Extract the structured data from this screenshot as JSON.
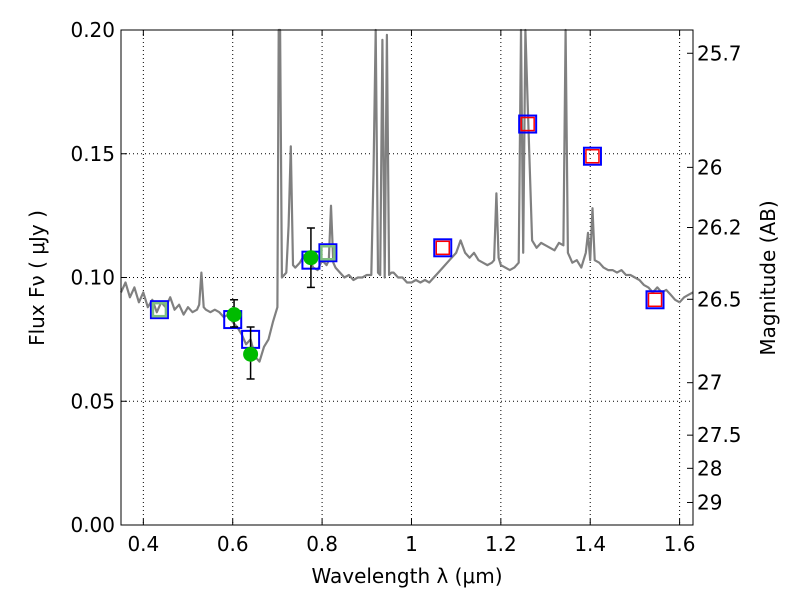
{
  "chart_data": {
    "type": "line",
    "xlabel": "Wavelength  λ (μm)",
    "ylabel": "Flux  Fν  ( μJy )",
    "ylabel_right": "Magnitude (AB)",
    "xlim": [
      0.35,
      1.63
    ],
    "ylim": [
      0.0,
      0.2
    ],
    "grid": true,
    "x_ticks": [
      0.4,
      0.6,
      0.8,
      1.0,
      1.2,
      1.4,
      1.6
    ],
    "x_tick_labels": [
      "0.4",
      "0.6",
      "0.8",
      "1",
      "1.2",
      "1.4",
      "1.6"
    ],
    "y_ticks": [
      0.0,
      0.05,
      0.1,
      0.15,
      0.2
    ],
    "y_tick_labels": [
      "0.00",
      "0.05",
      "0.10",
      "0.15",
      "0.20"
    ],
    "right_ticks": [
      {
        "label": "25.7",
        "flux": 0.1906
      },
      {
        "label": "26",
        "flux": 0.1445
      },
      {
        "label": "26.2",
        "flux": 0.1202
      },
      {
        "label": "26.5",
        "flux": 0.0912
      },
      {
        "label": "27",
        "flux": 0.0575
      },
      {
        "label": "27.5",
        "flux": 0.0363
      },
      {
        "label": "28",
        "flux": 0.0229
      },
      {
        "label": "29",
        "flux": 0.0091
      }
    ],
    "series": [
      {
        "kind": "spectrum",
        "color": "#808080",
        "x": [
          0.35,
          0.36,
          0.37,
          0.38,
          0.39,
          0.4,
          0.41,
          0.42,
          0.43,
          0.44,
          0.45,
          0.46,
          0.47,
          0.48,
          0.49,
          0.5,
          0.51,
          0.52,
          0.525,
          0.53,
          0.535,
          0.54,
          0.55,
          0.56,
          0.57,
          0.58,
          0.59,
          0.6,
          0.61,
          0.62,
          0.63,
          0.64,
          0.65,
          0.66,
          0.67,
          0.68,
          0.69,
          0.7,
          0.703,
          0.706,
          0.71,
          0.72,
          0.725,
          0.73,
          0.735,
          0.74,
          0.75,
          0.76,
          0.77,
          0.78,
          0.79,
          0.8,
          0.81,
          0.815,
          0.82,
          0.825,
          0.83,
          0.84,
          0.85,
          0.86,
          0.87,
          0.88,
          0.89,
          0.9,
          0.91,
          0.915,
          0.92,
          0.925,
          0.93,
          0.935,
          0.94,
          0.945,
          0.95,
          0.955,
          0.96,
          0.97,
          0.98,
          0.99,
          1.0,
          1.01,
          1.02,
          1.03,
          1.04,
          1.05,
          1.06,
          1.07,
          1.08,
          1.09,
          1.1,
          1.11,
          1.12,
          1.13,
          1.14,
          1.15,
          1.16,
          1.17,
          1.18,
          1.185,
          1.19,
          1.195,
          1.2,
          1.21,
          1.22,
          1.23,
          1.24,
          1.245,
          1.25,
          1.255,
          1.26,
          1.27,
          1.28,
          1.29,
          1.3,
          1.31,
          1.32,
          1.33,
          1.34,
          1.345,
          1.35,
          1.355,
          1.36,
          1.37,
          1.38,
          1.39,
          1.395,
          1.4,
          1.405,
          1.41,
          1.42,
          1.43,
          1.44,
          1.45,
          1.46,
          1.47,
          1.48,
          1.49,
          1.5,
          1.51,
          1.52,
          1.53,
          1.54,
          1.55,
          1.56,
          1.57,
          1.58,
          1.59,
          1.6,
          1.61,
          1.62,
          1.63
        ],
        "y": [
          0.094,
          0.098,
          0.092,
          0.096,
          0.09,
          0.094,
          0.088,
          0.091,
          0.086,
          0.09,
          0.088,
          0.092,
          0.087,
          0.089,
          0.085,
          0.088,
          0.086,
          0.087,
          0.089,
          0.102,
          0.088,
          0.087,
          0.086,
          0.087,
          0.086,
          0.084,
          0.085,
          0.082,
          0.08,
          0.077,
          0.073,
          0.075,
          0.068,
          0.066,
          0.072,
          0.075,
          0.082,
          0.088,
          0.2,
          0.2,
          0.1,
          0.102,
          0.121,
          0.153,
          0.105,
          0.104,
          0.106,
          0.109,
          0.108,
          0.104,
          0.103,
          0.107,
          0.105,
          0.107,
          0.129,
          0.106,
          0.104,
          0.102,
          0.1,
          0.101,
          0.099,
          0.1,
          0.1,
          0.101,
          0.101,
          0.142,
          0.2,
          0.102,
          0.101,
          0.196,
          0.1,
          0.198,
          0.101,
          0.102,
          0.102,
          0.1,
          0.1,
          0.098,
          0.098,
          0.099,
          0.098,
          0.099,
          0.098,
          0.1,
          0.102,
          0.104,
          0.106,
          0.108,
          0.11,
          0.115,
          0.11,
          0.108,
          0.11,
          0.107,
          0.106,
          0.105,
          0.106,
          0.107,
          0.134,
          0.108,
          0.105,
          0.104,
          0.103,
          0.104,
          0.106,
          0.2,
          0.11,
          0.2,
          0.17,
          0.115,
          0.112,
          0.114,
          0.113,
          0.112,
          0.111,
          0.114,
          0.113,
          0.2,
          0.11,
          0.108,
          0.106,
          0.107,
          0.104,
          0.11,
          0.118,
          0.107,
          0.128,
          0.107,
          0.106,
          0.104,
          0.103,
          0.103,
          0.102,
          0.103,
          0.101,
          0.101,
          0.1,
          0.099,
          0.097,
          0.096,
          0.094,
          0.096,
          0.094,
          0.095,
          0.093,
          0.091,
          0.09,
          0.092,
          0.093,
          0.094
        ]
      },
      {
        "kind": "model_photometry_blue",
        "marker": "square",
        "color": "#0000ff",
        "x": [
          0.436,
          0.6,
          0.64,
          0.775,
          0.813,
          1.07,
          1.26,
          1.405,
          1.545
        ],
        "y": [
          0.087,
          0.083,
          0.075,
          0.107,
          0.11,
          0.112,
          0.162,
          0.149,
          0.091
        ]
      },
      {
        "kind": "observed_photometry_red",
        "marker": "square",
        "color": "#ff0000",
        "x": [
          1.07,
          1.26,
          1.405,
          1.545
        ],
        "y": [
          0.112,
          0.162,
          0.149,
          0.091
        ]
      },
      {
        "kind": "observed_photometry_green_square",
        "marker": "square",
        "color": "#7fbf7f",
        "x": [
          0.436,
          0.813
        ],
        "y": [
          0.087,
          0.11
        ]
      },
      {
        "kind": "observed_photometry_green_dot",
        "marker": "circle",
        "color": "#00bb00",
        "x": [
          0.603,
          0.64,
          0.775
        ],
        "y": [
          0.085,
          0.069,
          0.108
        ],
        "yerr_low": [
          0.08,
          0.059,
          0.096
        ],
        "yerr_high": [
          0.091,
          0.08,
          0.12
        ]
      }
    ]
  }
}
